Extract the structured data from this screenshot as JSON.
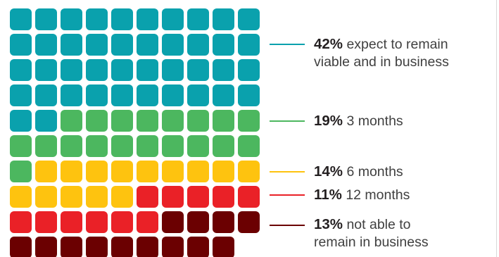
{
  "chart_data": {
    "type": "waffle",
    "total_units": 100,
    "columns": 10,
    "segments": [
      {
        "key": "viable",
        "percent": "42%",
        "value": 42,
        "label": "expect to remain viable and in business",
        "label_lines": [
          "expect to remain",
          "viable and in business"
        ],
        "color": "#0aa1ad"
      },
      {
        "key": "3mo",
        "percent": "19%",
        "value": 19,
        "label": "3 months",
        "label_lines": [
          "3 months"
        ],
        "color": "#4cb75f"
      },
      {
        "key": "6mo",
        "percent": "14%",
        "value": 14,
        "label": "6 months",
        "label_lines": [
          "6 months"
        ],
        "color": "#fec30f"
      },
      {
        "key": "12mo",
        "percent": "11%",
        "value": 11,
        "label": "12 months",
        "label_lines": [
          "12 months"
        ],
        "color": "#ea2127"
      },
      {
        "key": "not",
        "percent": "13%",
        "value": 13,
        "label": "not able to remain in business",
        "label_lines": [
          "not able to",
          "remain in business"
        ],
        "color": "#6b0001"
      }
    ]
  }
}
